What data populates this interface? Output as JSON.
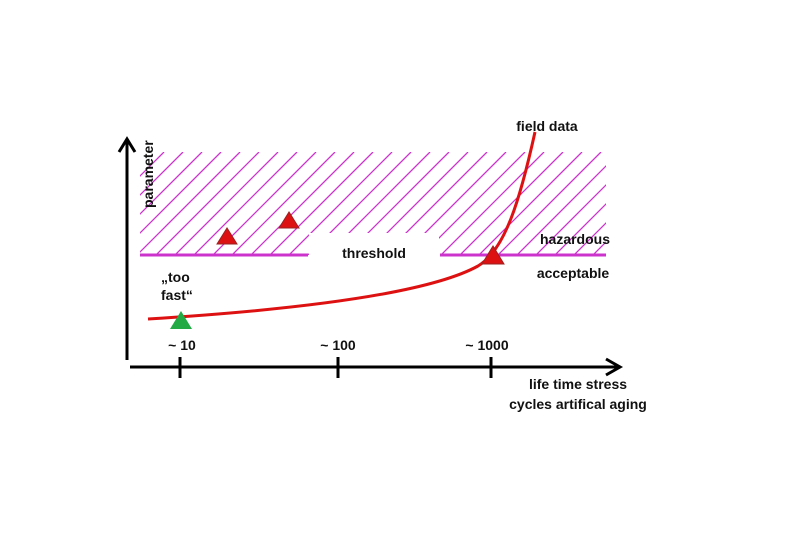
{
  "axes": {
    "y_label": "parameter",
    "x_label_line1": "life time stress",
    "x_label_line2": "cycles artifical aging",
    "ticks": [
      "~ 10",
      "~ 100",
      "~ 1000"
    ]
  },
  "regions": {
    "threshold": "threshold",
    "hazardous": "hazardous",
    "acceptable": "acceptable"
  },
  "annotations": {
    "field_data": "field data",
    "too_fast_line1": "„too",
    "too_fast_line2": "fast“"
  },
  "colors": {
    "hatch": "#cc33cc",
    "curve": "#dd1111",
    "fail_marker": "#dd1111",
    "pass_marker": "#22aa44"
  }
}
